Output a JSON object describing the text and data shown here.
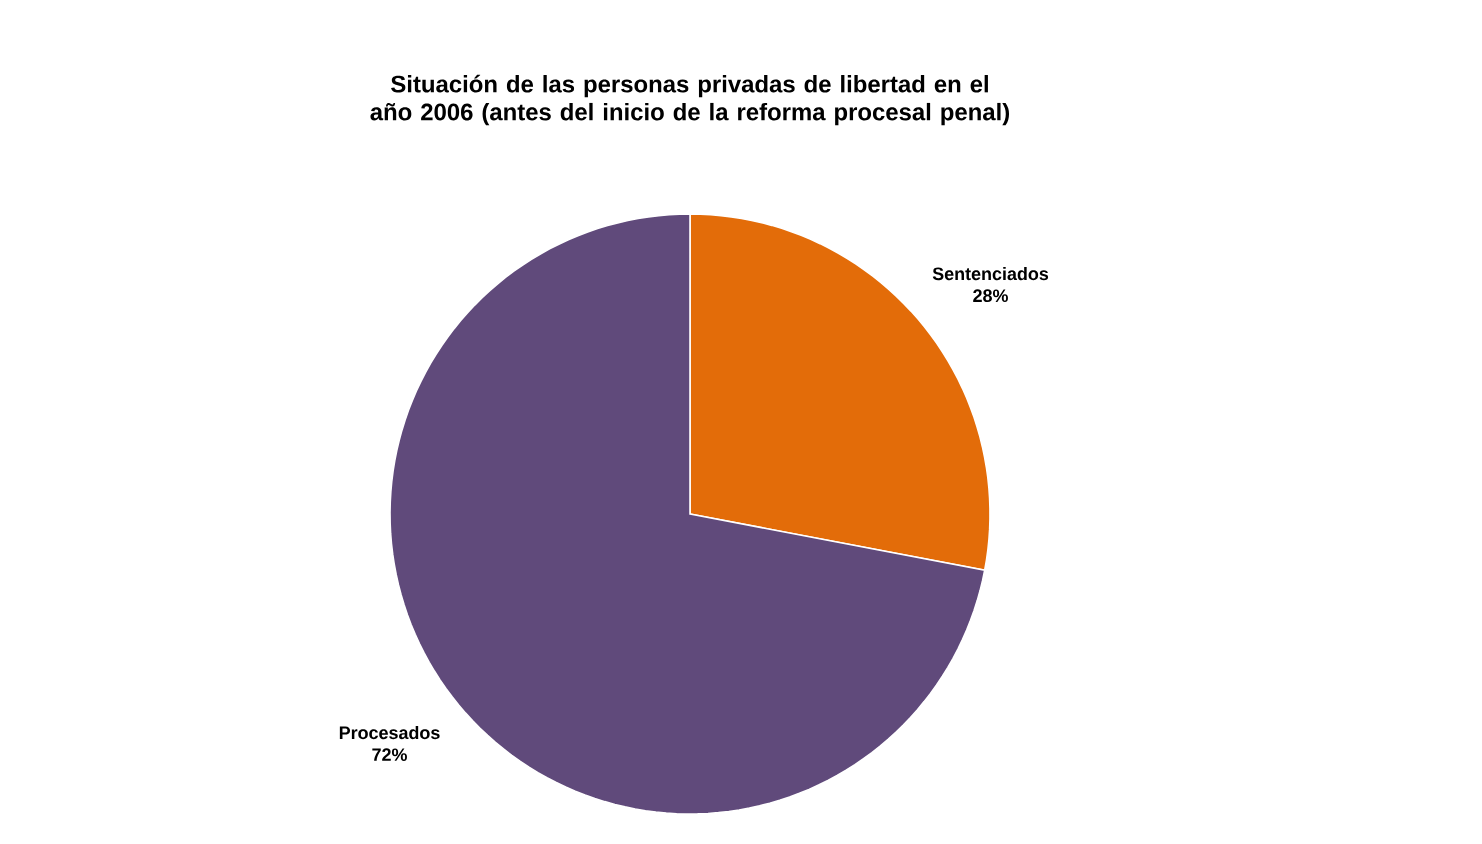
{
  "chart_data": {
    "type": "pie",
    "title": "Situación de las personas privadas de libertad en el año 2006 (antes del inicio de la reforma procesal penal)",
    "categories": [
      "Sentenciados",
      "Procesados"
    ],
    "values": [
      28,
      72
    ],
    "value_labels": [
      "28%",
      "72%"
    ],
    "colors": [
      "#e36c09",
      "#604a7b"
    ]
  }
}
